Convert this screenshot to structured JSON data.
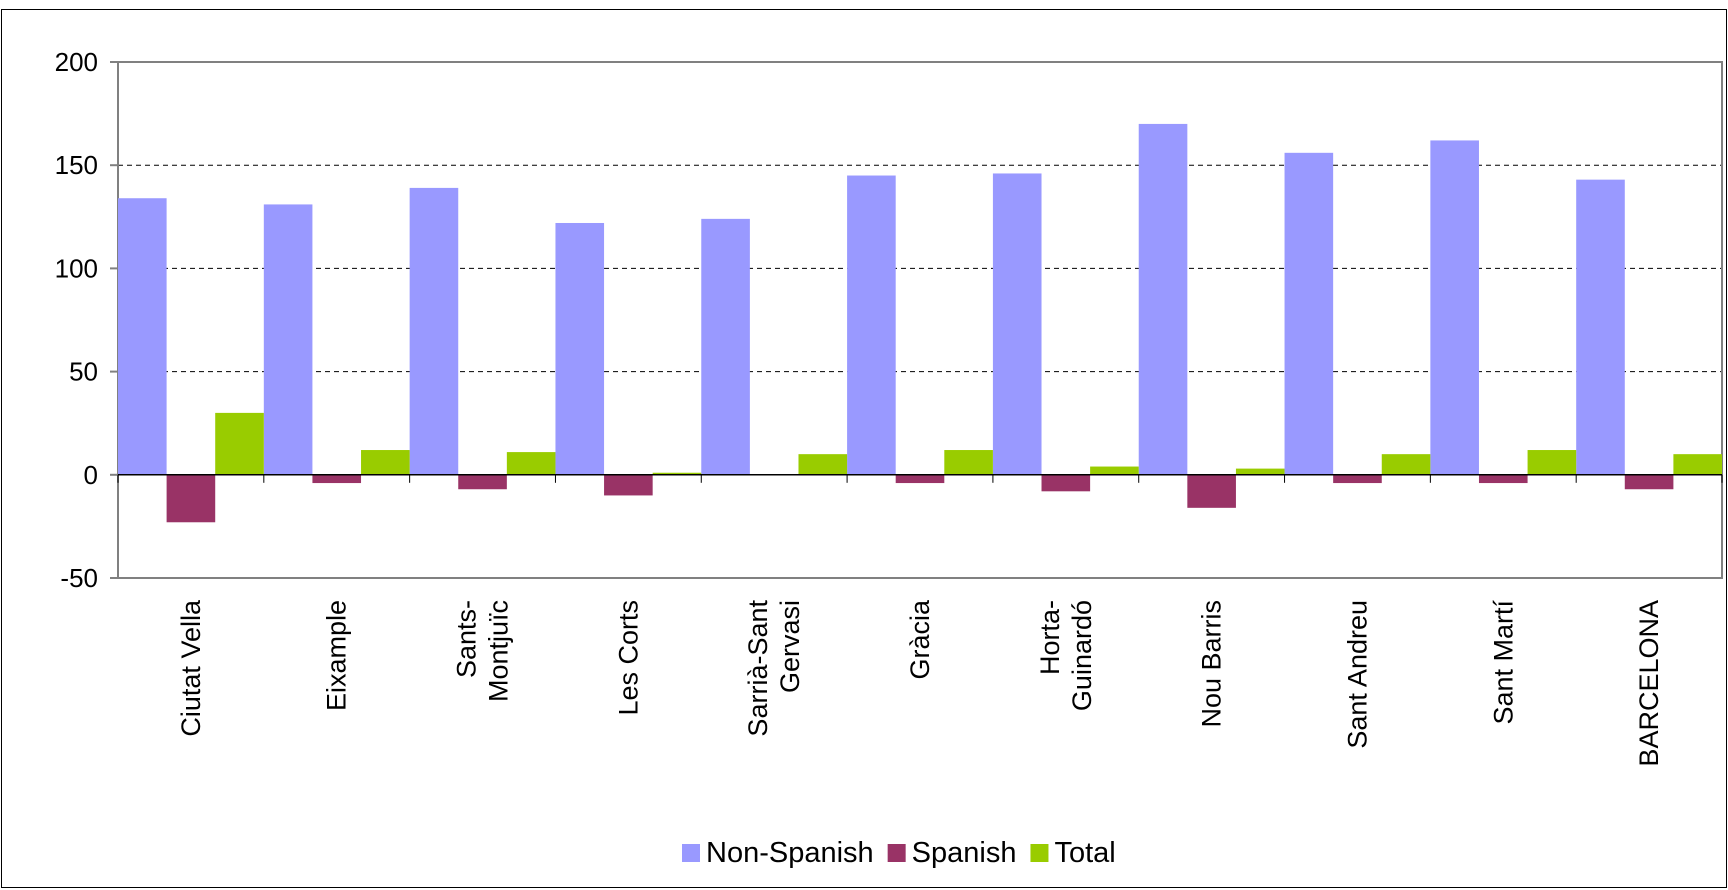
{
  "chart_data": {
    "type": "bar",
    "title": "",
    "xlabel": "",
    "ylabel": "",
    "ylim": [
      -50,
      200
    ],
    "yticks": [
      200,
      150,
      100,
      50,
      0,
      -50
    ],
    "grid": true,
    "legend_position": "bottom",
    "categories": [
      [
        "Ciutat Vella"
      ],
      [
        "Eixample"
      ],
      [
        "Sants-",
        "Montjuïc"
      ],
      [
        "Les Corts"
      ],
      [
        "Sarrià-Sant",
        "Gervasi"
      ],
      [
        "Gràcia"
      ],
      [
        "Horta-",
        "Guinardó"
      ],
      [
        "Nou Barris"
      ],
      [
        "Sant Andreu"
      ],
      [
        "Sant Martí"
      ],
      [
        "BARCELONA"
      ]
    ],
    "series": [
      {
        "name": "Non-Spanish",
        "color": "#9999FF",
        "values": [
          134,
          131,
          139,
          122,
          124,
          145,
          146,
          170,
          156,
          162,
          143
        ]
      },
      {
        "name": "Spanish",
        "color": "#993366",
        "values": [
          -23,
          -4,
          -7,
          -10,
          0,
          -4,
          -8,
          -16,
          -4,
          -4,
          -7
        ]
      },
      {
        "name": "Total",
        "color": "#99CC00",
        "values": [
          30,
          12,
          11,
          1,
          10,
          12,
          4,
          3,
          10,
          12,
          10
        ]
      }
    ]
  }
}
